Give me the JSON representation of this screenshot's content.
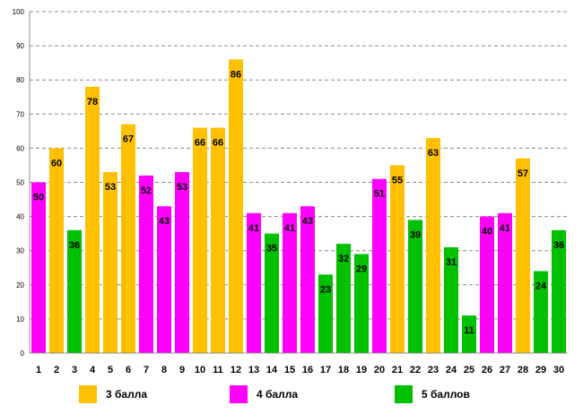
{
  "chart_data": {
    "type": "bar",
    "title": "",
    "xlabel": "",
    "ylabel": "",
    "ylim": [
      0,
      100
    ],
    "yticks": [
      0,
      10,
      20,
      30,
      40,
      50,
      60,
      70,
      80,
      90,
      100
    ],
    "categories": [
      "1",
      "2",
      "3",
      "4",
      "5",
      "6",
      "7",
      "8",
      "9",
      "10",
      "11",
      "12",
      "13",
      "14",
      "15",
      "16",
      "17",
      "18",
      "19",
      "20",
      "21",
      "22",
      "23",
      "24",
      "25",
      "26",
      "27",
      "28",
      "29",
      "30"
    ],
    "values": [
      50,
      60,
      36,
      78,
      53,
      67,
      52,
      43,
      53,
      66,
      66,
      86,
      41,
      35,
      41,
      43,
      23,
      32,
      29,
      51,
      55,
      39,
      63,
      31,
      11,
      40,
      41,
      57,
      24,
      36
    ],
    "groups": [
      "4 балла",
      "3 балла",
      "5 баллов",
      "3 балла",
      "3 балла",
      "3 балла",
      "4 балла",
      "4 балла",
      "4 балла",
      "3 балла",
      "3 балла",
      "3 балла",
      "4 балла",
      "5 баллов",
      "4 балла",
      "4 балла",
      "5 баллов",
      "5 баллов",
      "5 баллов",
      "4 балла",
      "3 балла",
      "5 баллов",
      "3 балла",
      "5 баллов",
      "5 баллов",
      "4 балла",
      "4 балла",
      "3 балла",
      "5 баллов",
      "5 баллов"
    ],
    "legend": [
      {
        "name": "3 балла",
        "color": "#FFC000"
      },
      {
        "name": "4 балла",
        "color": "#FF00FF"
      },
      {
        "name": "5 баллов",
        "color": "#00C000"
      }
    ],
    "grid": true,
    "legend_position": "bottom"
  }
}
